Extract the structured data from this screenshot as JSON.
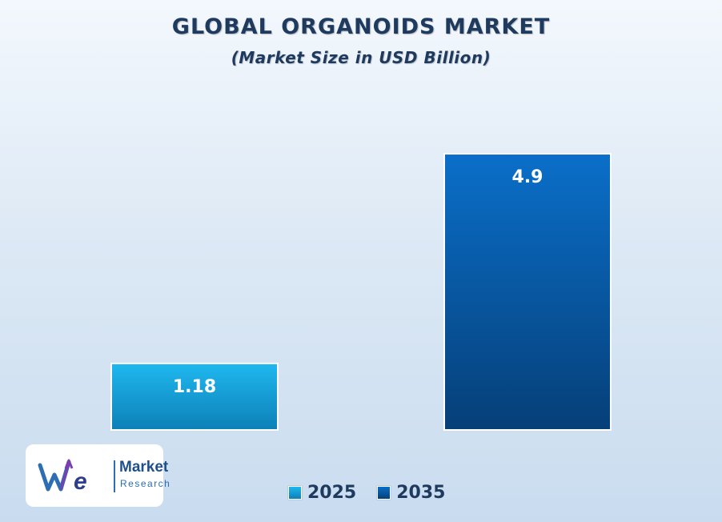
{
  "chart_data": {
    "type": "bar",
    "title": "GLOBAL ORGANOIDS MARKET",
    "subtitle": "(Market Size in USD Billion)",
    "categories": [
      "2025",
      "2035"
    ],
    "values": [
      1.18,
      4.9
    ],
    "data_labels": [
      "1.18",
      "4.9"
    ],
    "series_colors": [
      "#14a3dc",
      "#0b58a8"
    ],
    "legend": {
      "placement": "bottom-center",
      "entries": [
        "2025",
        "2035"
      ]
    },
    "grid": false,
    "ylim": [
      0,
      5.0
    ]
  },
  "logo": {
    "brand_text": "Market",
    "brand_subtext": "Research"
  }
}
